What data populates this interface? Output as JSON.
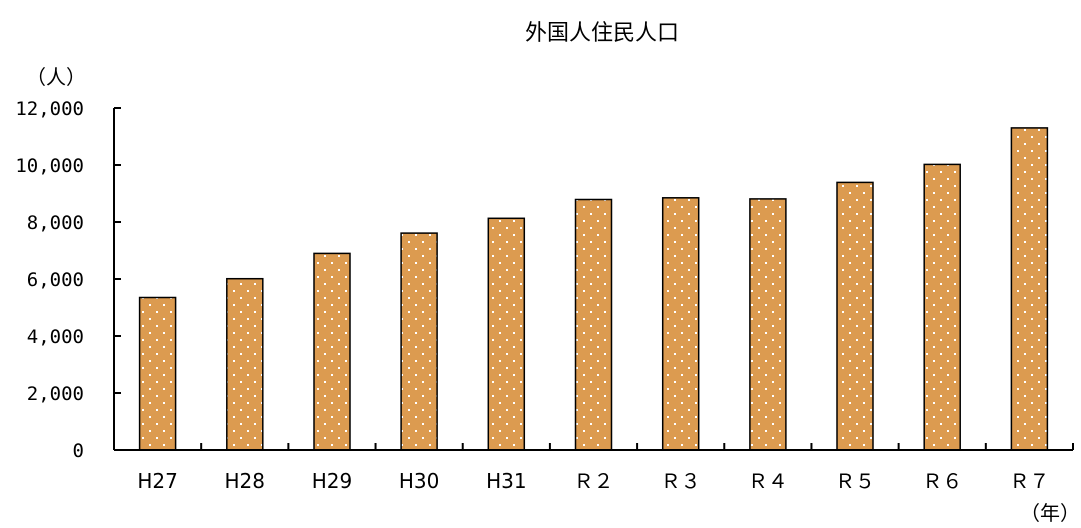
{
  "chart_data": {
    "type": "bar",
    "title": "外国人住民人口",
    "ylabel": "（人）",
    "xlabel": "（年）",
    "categories": [
      "H27",
      "H28",
      "H29",
      "H30",
      "H31",
      "Ｒ２",
      "Ｒ３",
      "Ｒ４",
      "Ｒ５",
      "Ｒ６",
      "Ｒ７"
    ],
    "series": [
      {
        "values": [
          5350,
          6010,
          6900,
          7610,
          8130,
          8790,
          8850,
          8810,
          9390,
          10020,
          11300
        ]
      }
    ],
    "ylim": [
      0,
      12000
    ],
    "yticks": [
      "0",
      "2,000",
      "4,000",
      "6,000",
      "8,000",
      "10,000",
      "12,000"
    ],
    "bar_color": "#dc9b50",
    "dot_color": "#ffffff",
    "grid": false,
    "legend": "none"
  }
}
